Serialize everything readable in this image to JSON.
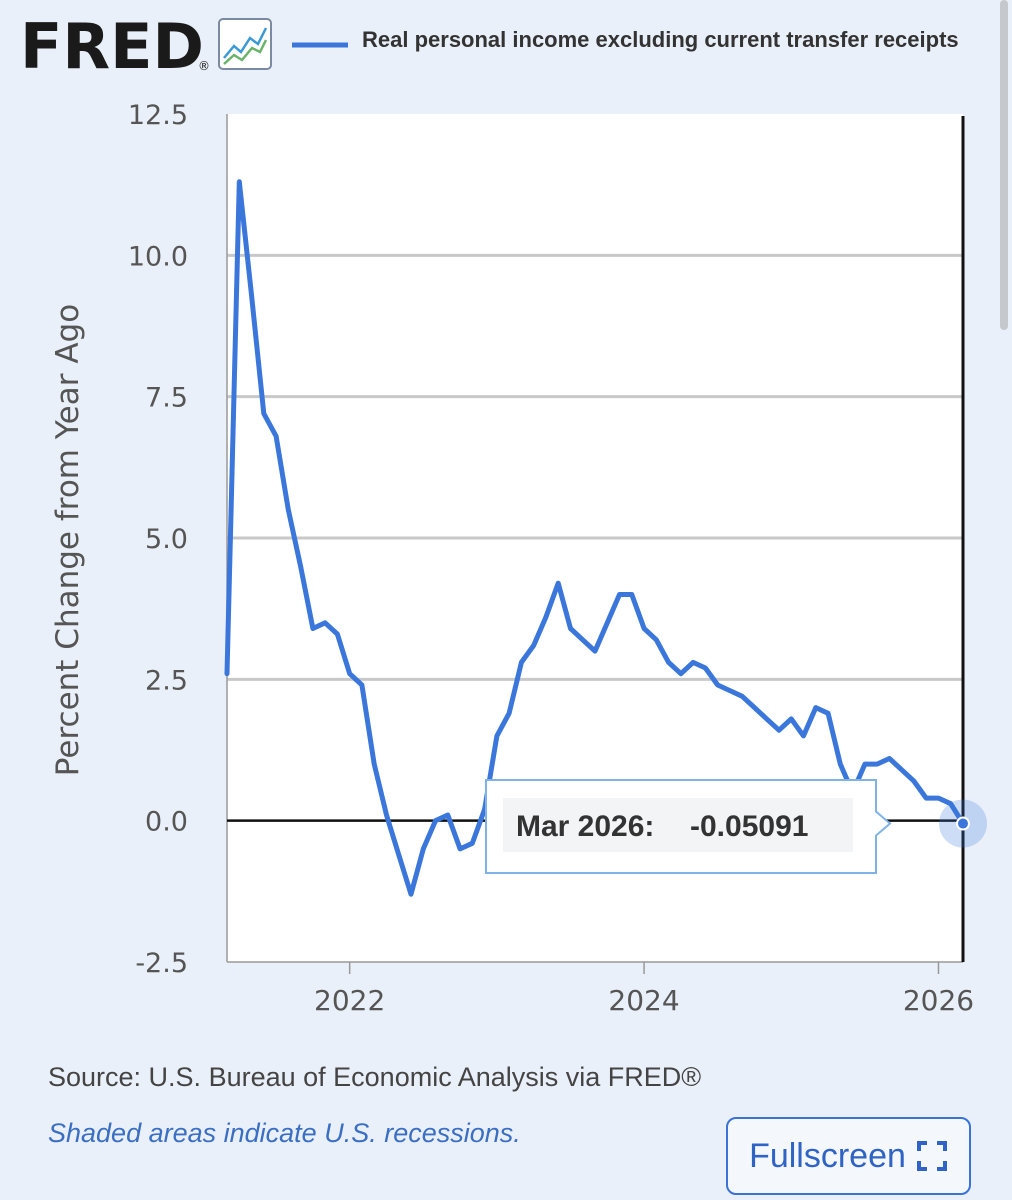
{
  "header": {
    "logo_text": "FRED",
    "logo_mark": "®",
    "logo_icon": "line-graph-icon",
    "legend_label": "Real personal income excluding current transfer receipts",
    "series_color": "#3b77db"
  },
  "tooltip": {
    "date_label": "Mar 2026:",
    "value_label": "-0.05091"
  },
  "chart_data": {
    "type": "line",
    "title": "",
    "ylabel": "Percent Change from Year Ago",
    "xlabel": "",
    "ylim": [
      -2.5,
      12.5
    ],
    "xlim": [
      "2021-03",
      "2026-03"
    ],
    "yticks": [
      "12.5",
      "10.0",
      "7.5",
      "5.0",
      "2.5",
      "0.0",
      "-2.5"
    ],
    "xticks": [
      "2022",
      "2024",
      "2026"
    ],
    "grid": "horizontal",
    "series": [
      {
        "name": "Real personal income excluding current transfer receipts",
        "color": "#3b77db",
        "points": [
          [
            "2021-03",
            2.6
          ],
          [
            "2021-04",
            11.3
          ],
          [
            "2021-05",
            9.3
          ],
          [
            "2021-06",
            7.2
          ],
          [
            "2021-07",
            6.8
          ],
          [
            "2021-08",
            5.5
          ],
          [
            "2021-09",
            4.5
          ],
          [
            "2021-10",
            3.4
          ],
          [
            "2021-11",
            3.5
          ],
          [
            "2021-12",
            3.3
          ],
          [
            "2022-01",
            2.6
          ],
          [
            "2022-02",
            2.4
          ],
          [
            "2022-03",
            1.0
          ],
          [
            "2022-04",
            0.1
          ],
          [
            "2022-05",
            -0.6
          ],
          [
            "2022-06",
            -1.3
          ],
          [
            "2022-07",
            -0.5
          ],
          [
            "2022-08",
            0.0
          ],
          [
            "2022-09",
            0.1
          ],
          [
            "2022-10",
            -0.5
          ],
          [
            "2022-11",
            -0.4
          ],
          [
            "2022-12",
            0.2
          ],
          [
            "2023-01",
            1.5
          ],
          [
            "2023-02",
            1.9
          ],
          [
            "2023-03",
            2.8
          ],
          [
            "2023-04",
            3.1
          ],
          [
            "2023-05",
            3.6
          ],
          [
            "2023-06",
            4.2
          ],
          [
            "2023-07",
            3.4
          ],
          [
            "2023-08",
            3.2
          ],
          [
            "2023-09",
            3.0
          ],
          [
            "2023-10",
            3.5
          ],
          [
            "2023-11",
            4.0
          ],
          [
            "2023-12",
            4.0
          ],
          [
            "2024-01",
            3.4
          ],
          [
            "2024-02",
            3.2
          ],
          [
            "2024-03",
            2.8
          ],
          [
            "2024-04",
            2.6
          ],
          [
            "2024-05",
            2.8
          ],
          [
            "2024-06",
            2.7
          ],
          [
            "2024-07",
            2.4
          ],
          [
            "2024-08",
            2.3
          ],
          [
            "2024-09",
            2.2
          ],
          [
            "2024-10",
            2.0
          ],
          [
            "2024-11",
            1.8
          ],
          [
            "2024-12",
            1.6
          ],
          [
            "2025-01",
            1.8
          ],
          [
            "2025-02",
            1.5
          ],
          [
            "2025-03",
            2.0
          ],
          [
            "2025-04",
            1.9
          ],
          [
            "2025-05",
            1.0
          ],
          [
            "2025-06",
            0.5
          ],
          [
            "2025-07",
            1.0
          ],
          [
            "2025-08",
            1.0
          ],
          [
            "2025-09",
            1.1
          ],
          [
            "2025-10",
            0.9
          ],
          [
            "2025-11",
            0.7
          ],
          [
            "2025-12",
            0.4
          ],
          [
            "2026-01",
            0.4
          ],
          [
            "2026-02",
            0.3
          ],
          [
            "2026-03",
            -0.05091
          ]
        ]
      }
    ]
  },
  "footer": {
    "source": "Source: U.S. Bureau of Economic Analysis via FRED®",
    "note": "Shaded areas indicate U.S. recessions.",
    "fullscreen_label": "Fullscreen",
    "fullscreen_icon": "expand-icon"
  }
}
